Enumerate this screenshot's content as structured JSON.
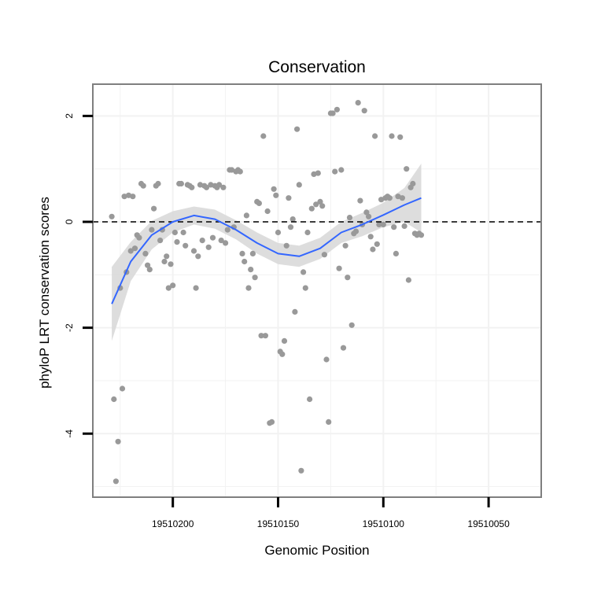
{
  "chart_data": {
    "type": "scatter",
    "title": "Conservation",
    "xlabel": "Genomic Position",
    "ylabel": "phyloP LRT conservation scores",
    "x_reversed": true,
    "xlim": [
      19510238,
      19510025
    ],
    "ylim": [
      -5.2,
      2.6
    ],
    "x_ticks": [
      19510200,
      19510150,
      19510100,
      19510050
    ],
    "x_tick_labels": [
      "19510200",
      "19510150",
      "19510100",
      "19510050"
    ],
    "y_ticks": [
      -4,
      -2,
      0,
      2
    ],
    "y_tick_labels": [
      "-4",
      "-2",
      "0",
      "2"
    ],
    "reference_line_y": 0,
    "grid": true,
    "colors": {
      "points": "#999999",
      "smooth_line": "#3366ff",
      "ribbon": "#d9d9d9",
      "panel_border": "#7f7f7f",
      "grid": "#f2f2f2"
    },
    "points": [
      [
        19510229,
        0.1
      ],
      [
        19510228,
        -3.35
      ],
      [
        19510227,
        -4.9
      ],
      [
        19510226,
        -4.15
      ],
      [
        19510225,
        -1.25
      ],
      [
        19510224,
        -3.15
      ],
      [
        19510223,
        0.48
      ],
      [
        19510222,
        -0.95
      ],
      [
        19510221,
        0.5
      ],
      [
        19510220,
        -0.55
      ],
      [
        19510219,
        0.48
      ],
      [
        19510218,
        -0.5
      ],
      [
        19510217,
        -0.25
      ],
      [
        19510216,
        -0.3
      ],
      [
        19510215,
        0.72
      ],
      [
        19510214,
        0.68
      ],
      [
        19510213,
        -0.6
      ],
      [
        19510212,
        -0.82
      ],
      [
        19510211,
        -0.9
      ],
      [
        19510210,
        -0.15
      ],
      [
        19510209,
        0.25
      ],
      [
        19510208,
        0.68
      ],
      [
        19510207,
        0.72
      ],
      [
        19510206,
        -0.35
      ],
      [
        19510205,
        -0.15
      ],
      [
        19510204,
        -0.75
      ],
      [
        19510203,
        -0.65
      ],
      [
        19510202,
        -1.25
      ],
      [
        19510201,
        -0.8
      ],
      [
        19510200,
        -1.2
      ],
      [
        19510199,
        -0.2
      ],
      [
        19510198,
        -0.38
      ],
      [
        19510197,
        0.72
      ],
      [
        19510196,
        0.72
      ],
      [
        19510195,
        -0.2
      ],
      [
        19510194,
        -0.45
      ],
      [
        19510193,
        0.7
      ],
      [
        19510192,
        0.68
      ],
      [
        19510191,
        0.65
      ],
      [
        19510190,
        -0.55
      ],
      [
        19510189,
        -1.25
      ],
      [
        19510188,
        -0.65
      ],
      [
        19510187,
        0.7
      ],
      [
        19510186,
        -0.35
      ],
      [
        19510185,
        0.68
      ],
      [
        19510184,
        0.65
      ],
      [
        19510183,
        -0.48
      ],
      [
        19510182,
        0.7
      ],
      [
        19510181,
        -0.3
      ],
      [
        19510180,
        0.68
      ],
      [
        19510179,
        0.65
      ],
      [
        19510178,
        0.7
      ],
      [
        19510177,
        -0.35
      ],
      [
        19510176,
        0.65
      ],
      [
        19510175,
        -0.4
      ],
      [
        19510174,
        -0.15
      ],
      [
        19510173,
        0.98
      ],
      [
        19510172,
        0.98
      ],
      [
        19510171,
        -0.1
      ],
      [
        19510170,
        0.95
      ],
      [
        19510169,
        0.98
      ],
      [
        19510168,
        0.95
      ],
      [
        19510167,
        -0.6
      ],
      [
        19510166,
        -0.75
      ],
      [
        19510165,
        0.12
      ],
      [
        19510164,
        -1.25
      ],
      [
        19510163,
        -0.9
      ],
      [
        19510162,
        -0.6
      ],
      [
        19510161,
        -1.05
      ],
      [
        19510160,
        0.38
      ],
      [
        19510159,
        0.35
      ],
      [
        19510158,
        -2.15
      ],
      [
        19510157,
        1.62
      ],
      [
        19510156,
        -2.15
      ],
      [
        19510155,
        0.2
      ],
      [
        19510154,
        -3.8
      ],
      [
        19510153,
        -3.78
      ],
      [
        19510152,
        0.62
      ],
      [
        19510151,
        0.5
      ],
      [
        19510150,
        -0.2
      ],
      [
        19510149,
        -2.45
      ],
      [
        19510148,
        -2.5
      ],
      [
        19510147,
        -2.25
      ],
      [
        19510146,
        -0.45
      ],
      [
        19510145,
        0.45
      ],
      [
        19510144,
        -0.1
      ],
      [
        19510143,
        0.05
      ],
      [
        19510142,
        -1.7
      ],
      [
        19510141,
        1.75
      ],
      [
        19510140,
        0.7
      ],
      [
        19510139,
        -4.7
      ],
      [
        19510138,
        -0.95
      ],
      [
        19510137,
        -1.25
      ],
      [
        19510136,
        -0.2
      ],
      [
        19510135,
        -3.35
      ],
      [
        19510134,
        0.25
      ],
      [
        19510133,
        0.9
      ],
      [
        19510132,
        0.33
      ],
      [
        19510131,
        0.92
      ],
      [
        19510130,
        0.38
      ],
      [
        19510129,
        0.3
      ],
      [
        19510128,
        -0.62
      ],
      [
        19510127,
        -2.6
      ],
      [
        19510126,
        -3.78
      ],
      [
        19510125,
        2.05
      ],
      [
        19510124,
        2.05
      ],
      [
        19510123,
        0.95
      ],
      [
        19510122,
        2.12
      ],
      [
        19510121,
        -0.88
      ],
      [
        19510120,
        0.98
      ],
      [
        19510119,
        -2.38
      ],
      [
        19510118,
        -0.45
      ],
      [
        19510117,
        -1.05
      ],
      [
        19510116,
        0.08
      ],
      [
        19510115,
        -1.95
      ],
      [
        19510114,
        -0.22
      ],
      [
        19510113,
        -0.18
      ],
      [
        19510112,
        2.25
      ],
      [
        19510111,
        0.4
      ],
      [
        19510110,
        -0.05
      ],
      [
        19510109,
        2.1
      ],
      [
        19510108,
        0.18
      ],
      [
        19510107,
        0.1
      ],
      [
        19510106,
        -0.28
      ],
      [
        19510105,
        -0.52
      ],
      [
        19510104,
        1.62
      ],
      [
        19510103,
        -0.42
      ],
      [
        19510102,
        -0.05
      ],
      [
        19510101,
        0.42
      ],
      [
        19510100,
        -0.05
      ],
      [
        19510099,
        0.45
      ],
      [
        19510098,
        0.48
      ],
      [
        19510097,
        0.45
      ],
      [
        19510096,
        1.62
      ],
      [
        19510095,
        -0.1
      ],
      [
        19510094,
        -0.6
      ],
      [
        19510093,
        0.48
      ],
      [
        19510092,
        1.6
      ],
      [
        19510091,
        0.45
      ],
      [
        19510090,
        -0.08
      ],
      [
        19510089,
        1.0
      ],
      [
        19510088,
        -1.1
      ],
      [
        19510087,
        0.65
      ],
      [
        19510086,
        0.72
      ],
      [
        19510085,
        -0.22
      ],
      [
        19510084,
        -0.25
      ],
      [
        19510083,
        -0.22
      ],
      [
        19510082,
        -0.25
      ]
    ],
    "smooth": {
      "x": [
        19510229,
        19510220,
        19510210,
        19510200,
        19510190,
        19510180,
        19510170,
        19510160,
        19510150,
        19510140,
        19510130,
        19510120,
        19510110,
        19510100,
        19510090,
        19510082
      ],
      "y": [
        -1.55,
        -0.75,
        -0.25,
        0.0,
        0.12,
        0.05,
        -0.15,
        -0.4,
        -0.6,
        -0.65,
        -0.5,
        -0.2,
        -0.05,
        0.13,
        0.32,
        0.45
      ],
      "lower": [
        -2.25,
        -1.12,
        -0.52,
        -0.2,
        -0.05,
        -0.13,
        -0.33,
        -0.6,
        -0.8,
        -0.85,
        -0.7,
        -0.4,
        -0.27,
        -0.1,
        0.0,
        -0.2
      ],
      "upper": [
        -0.85,
        -0.38,
        0.02,
        0.2,
        0.29,
        0.23,
        0.03,
        -0.2,
        -0.4,
        -0.45,
        -0.3,
        0.0,
        0.17,
        0.36,
        0.64,
        1.1
      ]
    }
  }
}
